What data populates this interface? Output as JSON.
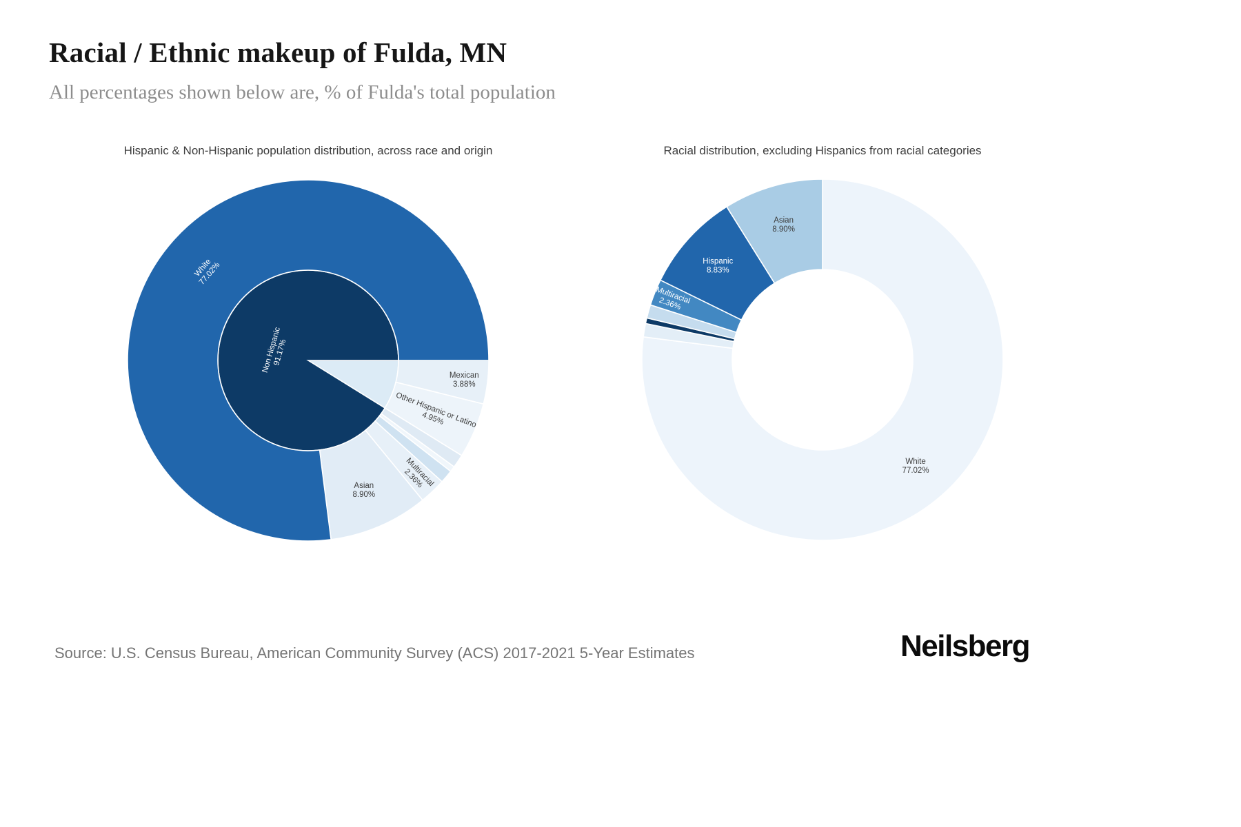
{
  "page": {
    "title": "Racial / Ethnic makeup of Fulda, MN",
    "subtitle": "All percentages shown below are, % of Fulda's total population",
    "source": "Source: U.S. Census Bureau, American Community Survey (ACS) 2017-2021 5-Year Estimates",
    "logo": "Neilsberg"
  },
  "colors": {
    "navy": "#0d3a66",
    "medium_blue": "#2166ac",
    "light_blue": "#a9cce5",
    "pale_blue": "#e9f1f8",
    "text_dark": "#3d3d3d",
    "text_light": "#ffffff"
  },
  "chart_data": [
    {
      "type": "pie",
      "variant": "sunburst",
      "title": "Hispanic & Non-Hispanic population distribution, across race and origin",
      "units": "% of Fulda's total population",
      "start_angle_from_north": 90,
      "legend": "none",
      "rings": [
        {
          "name": "origin",
          "r0": 0,
          "r1": 0.5,
          "segments": [
            {
              "label": "Hispanic",
              "value": 8.83,
              "color": "#dcebf6",
              "label_visible": false
            },
            {
              "label": "Non Hispanic",
              "value": 91.17,
              "color": "#0d3a66",
              "label_visible": true,
              "text_color": "#ffffff",
              "label_r": 0.19,
              "label_rotation": -74
            }
          ]
        },
        {
          "name": "race-and-origin",
          "r0": 0.5,
          "r1": 1.0,
          "segments": [
            {
              "label": "Mexican",
              "value": 3.88,
              "color": "#e7f0f8",
              "label_visible": true,
              "text_color": "#3d3d3d",
              "label_r": 0.87,
              "label_rotation": 0
            },
            {
              "label": "Other Hispanic or Latino",
              "value": 4.95,
              "color": "#edf4fa",
              "label_visible": true,
              "text_color": "#3d3d3d",
              "label_r": 0.76,
              "label_rotation": 21
            },
            {
              "label": "",
              "value": 1.2,
              "color": "#dfeaf4",
              "label_visible": false
            },
            {
              "label": "",
              "value": 0.5,
              "color": "#f0f6fb",
              "label_visible": false
            },
            {
              "label": "",
              "value": 1.19,
              "color": "#cfe2f1",
              "label_visible": false
            },
            {
              "label": "Multiracial",
              "value": 2.36,
              "color": "#e7f0f8",
              "label_visible": true,
              "text_color": "#3d3d3d",
              "label_r": 0.875,
              "label_rotation": 46
            },
            {
              "label": "Asian",
              "value": 8.9,
              "color": "#e1ecf6",
              "label_visible": true,
              "text_color": "#3d3d3d",
              "label_r": 0.78,
              "label_rotation": 0
            },
            {
              "label": "White",
              "value": 77.02,
              "color": "#2166ac",
              "label_visible": true,
              "text_color": "#ffffff",
              "label_r": 0.755,
              "label_rotation": -49
            }
          ]
        }
      ]
    },
    {
      "type": "pie",
      "variant": "donut",
      "title": "Racial distribution, excluding Hispanics from racial categories",
      "units": "% of Fulda's total population",
      "start_angle_from_north": 0,
      "legend": "none",
      "rings": [
        {
          "name": "race",
          "r0": 0.5,
          "r1": 1.0,
          "segments": [
            {
              "label": "White",
              "value": 77.02,
              "color": "#edf4fb",
              "label_visible": true,
              "text_color": "#3d3d3d",
              "label_r": 0.78,
              "label_rotation": 0
            },
            {
              "label": "",
              "value": 1.2,
              "color": "#e3eef7",
              "label_visible": false
            },
            {
              "label": "",
              "value": 0.5,
              "color": "#0d3a66",
              "label_visible": false
            },
            {
              "label": "",
              "value": 1.19,
              "color": "#c5dcee",
              "label_visible": false
            },
            {
              "label": "Multiracial",
              "value": 2.36,
              "color": "#4288c2",
              "label_visible": true,
              "text_color": "#ffffff",
              "label_r": 0.9,
              "label_rotation": 20
            },
            {
              "label": "Hispanic",
              "value": 8.83,
              "color": "#2166ac",
              "label_visible": true,
              "text_color": "#ffffff",
              "label_r": 0.78,
              "label_rotation": 0
            },
            {
              "label": "Asian",
              "value": 8.9,
              "color": "#a9cce5",
              "label_visible": true,
              "text_color": "#3d3d3d",
              "label_r": 0.78,
              "label_rotation": 0
            }
          ]
        }
      ]
    }
  ]
}
